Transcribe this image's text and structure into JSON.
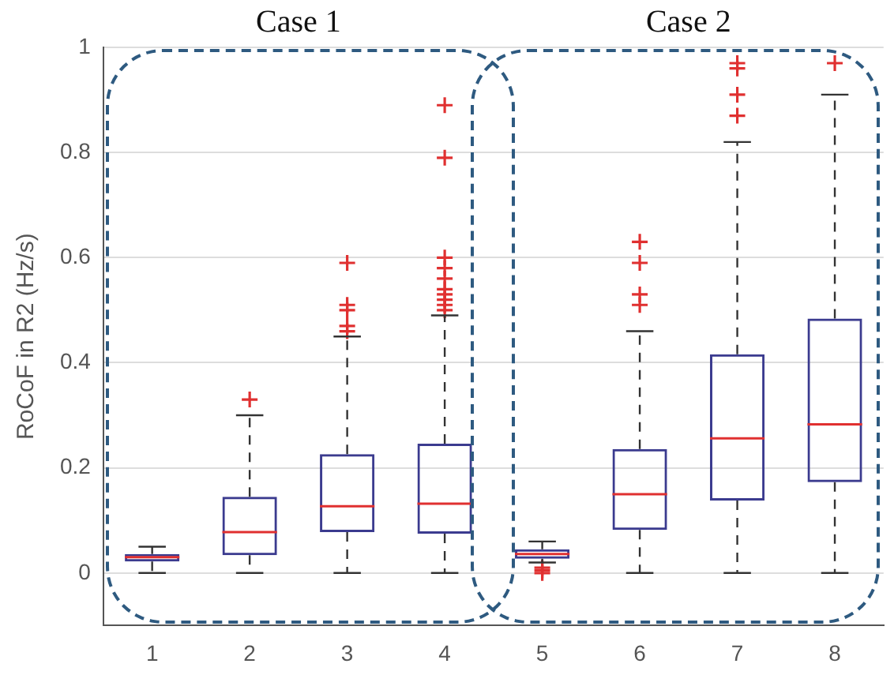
{
  "chart_data": {
    "type": "box",
    "ylabel": "RoCoF in R2 (Hz/s)",
    "annotations": [
      "Case 1",
      "Case 2"
    ],
    "categories": [
      "1",
      "2",
      "3",
      "4",
      "5",
      "6",
      "7",
      "8"
    ],
    "color": "#3b3b8f",
    "boxes": [
      {
        "low": 0,
        "q1": 0.022,
        "median": 0.03,
        "q3": 0.036,
        "high": 0.05
      },
      {
        "low": 0,
        "q1": 0.034,
        "median": 0.078,
        "q3": 0.145,
        "high": 0.3,
        "outliers": [
          0.33
        ]
      },
      {
        "low": 0,
        "q1": 0.078,
        "median": 0.127,
        "q3": 0.226,
        "high": 0.45,
        "outliers": [
          0.46,
          0.47,
          0.5,
          0.51,
          0.59
        ]
      },
      {
        "low": 0,
        "q1": 0.075,
        "median": 0.132,
        "q3": 0.246,
        "high": 0.49,
        "outliers": [
          0.5,
          0.51,
          0.52,
          0.53,
          0.54,
          0.56,
          0.58,
          0.6,
          0.79,
          0.89
        ]
      },
      {
        "low": 0.02,
        "q1": 0.027,
        "median": 0.036,
        "q3": 0.045,
        "high": 0.06,
        "outliers": [
          0,
          0.005,
          0.01
        ]
      },
      {
        "low": 0,
        "q1": 0.082,
        "median": 0.15,
        "q3": 0.236,
        "high": 0.46,
        "outliers": [
          0.51,
          0.53,
          0.59,
          0.63
        ]
      },
      {
        "low": 0,
        "q1": 0.138,
        "median": 0.256,
        "q3": 0.416,
        "high": 0.82,
        "outliers": [
          0.87,
          0.91,
          0.96,
          0.97
        ]
      },
      {
        "low": 0,
        "q1": 0.173,
        "median": 0.283,
        "q3": 0.484,
        "high": 0.91,
        "outliers": [
          0.97
        ]
      }
    ],
    "ylim": [
      -0.1,
      1
    ],
    "yticks": [
      0,
      0.2,
      0.4,
      0.6,
      0.8,
      1
    ],
    "grid": "y"
  }
}
